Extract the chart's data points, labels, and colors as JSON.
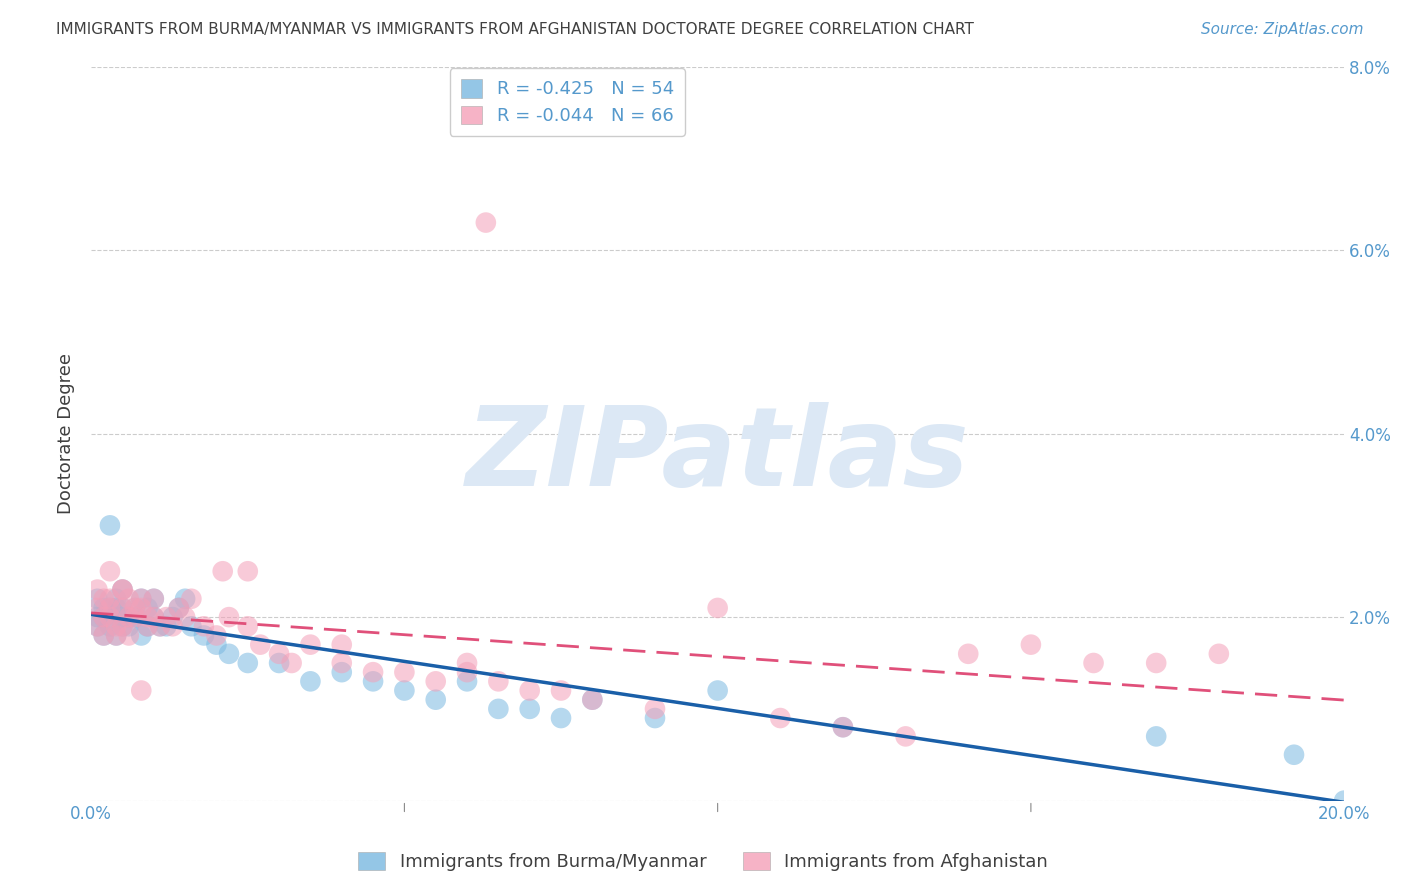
{
  "title": "IMMIGRANTS FROM BURMA/MYANMAR VS IMMIGRANTS FROM AFGHANISTAN DOCTORATE DEGREE CORRELATION CHART",
  "source": "Source: ZipAtlas.com",
  "ylabel": "Doctorate Degree",
  "y_tick_labels_right": [
    "",
    "2.0%",
    "4.0%",
    "6.0%",
    "8.0%"
  ],
  "x_tick_labels": [
    "0.0%",
    "",
    "",
    "",
    "20.0%"
  ],
  "xlim": [
    0.0,
    0.2
  ],
  "ylim": [
    0.0,
    0.08
  ],
  "blue_label": "Immigrants from Burma/Myanmar",
  "pink_label": "Immigrants from Afghanistan",
  "legend_R_blue": "R = -0.425",
  "legend_N_blue": "N = 54",
  "legend_R_pink": "R = -0.044",
  "legend_N_pink": "N = 66",
  "blue_color": "#7ab8e0",
  "pink_color": "#f4a0b8",
  "blue_line_color": "#1a5fa8",
  "pink_line_color": "#e0507a",
  "watermark_text": "ZIPatlas",
  "watermark_color": "#dce8f5",
  "background_color": "#ffffff",
  "grid_color": "#cccccc",
  "title_color": "#404040",
  "right_axis_color": "#5599cc",
  "blue_x": [
    0.001,
    0.001,
    0.001,
    0.002,
    0.002,
    0.002,
    0.003,
    0.003,
    0.003,
    0.004,
    0.004,
    0.004,
    0.005,
    0.005,
    0.005,
    0.005,
    0.006,
    0.006,
    0.007,
    0.007,
    0.008,
    0.008,
    0.009,
    0.009,
    0.01,
    0.01,
    0.011,
    0.012,
    0.013,
    0.014,
    0.015,
    0.016,
    0.018,
    0.02,
    0.022,
    0.025,
    0.03,
    0.035,
    0.04,
    0.045,
    0.05,
    0.055,
    0.06,
    0.065,
    0.07,
    0.075,
    0.08,
    0.09,
    0.1,
    0.12,
    0.17,
    0.192,
    0.2,
    0.003
  ],
  "blue_y": [
    0.022,
    0.02,
    0.019,
    0.021,
    0.018,
    0.02,
    0.021,
    0.019,
    0.02,
    0.022,
    0.018,
    0.021,
    0.02,
    0.019,
    0.021,
    0.023,
    0.02,
    0.019,
    0.021,
    0.02,
    0.022,
    0.018,
    0.021,
    0.019,
    0.02,
    0.022,
    0.019,
    0.019,
    0.02,
    0.021,
    0.022,
    0.019,
    0.018,
    0.017,
    0.016,
    0.015,
    0.015,
    0.013,
    0.014,
    0.013,
    0.012,
    0.011,
    0.013,
    0.01,
    0.01,
    0.009,
    0.011,
    0.009,
    0.012,
    0.008,
    0.007,
    0.005,
    0.0,
    0.03
  ],
  "pink_x": [
    0.001,
    0.001,
    0.001,
    0.002,
    0.002,
    0.002,
    0.003,
    0.003,
    0.003,
    0.004,
    0.004,
    0.005,
    0.005,
    0.005,
    0.006,
    0.006,
    0.006,
    0.007,
    0.007,
    0.008,
    0.008,
    0.009,
    0.009,
    0.01,
    0.01,
    0.011,
    0.012,
    0.013,
    0.014,
    0.015,
    0.016,
    0.018,
    0.02,
    0.022,
    0.025,
    0.027,
    0.03,
    0.032,
    0.035,
    0.04,
    0.045,
    0.05,
    0.055,
    0.06,
    0.065,
    0.07,
    0.075,
    0.08,
    0.09,
    0.1,
    0.11,
    0.12,
    0.13,
    0.14,
    0.15,
    0.16,
    0.17,
    0.18,
    0.003,
    0.005,
    0.008,
    0.025,
    0.04,
    0.06,
    0.021,
    0.063
  ],
  "pink_y": [
    0.023,
    0.021,
    0.019,
    0.022,
    0.02,
    0.018,
    0.021,
    0.02,
    0.022,
    0.019,
    0.018,
    0.023,
    0.021,
    0.019,
    0.022,
    0.02,
    0.018,
    0.021,
    0.02,
    0.022,
    0.021,
    0.02,
    0.019,
    0.022,
    0.02,
    0.019,
    0.02,
    0.019,
    0.021,
    0.02,
    0.022,
    0.019,
    0.018,
    0.02,
    0.019,
    0.017,
    0.016,
    0.015,
    0.017,
    0.015,
    0.014,
    0.014,
    0.013,
    0.015,
    0.013,
    0.012,
    0.012,
    0.011,
    0.01,
    0.021,
    0.009,
    0.008,
    0.007,
    0.016,
    0.017,
    0.015,
    0.015,
    0.016,
    0.025,
    0.023,
    0.012,
    0.025,
    0.017,
    0.014,
    0.025,
    0.063
  ]
}
